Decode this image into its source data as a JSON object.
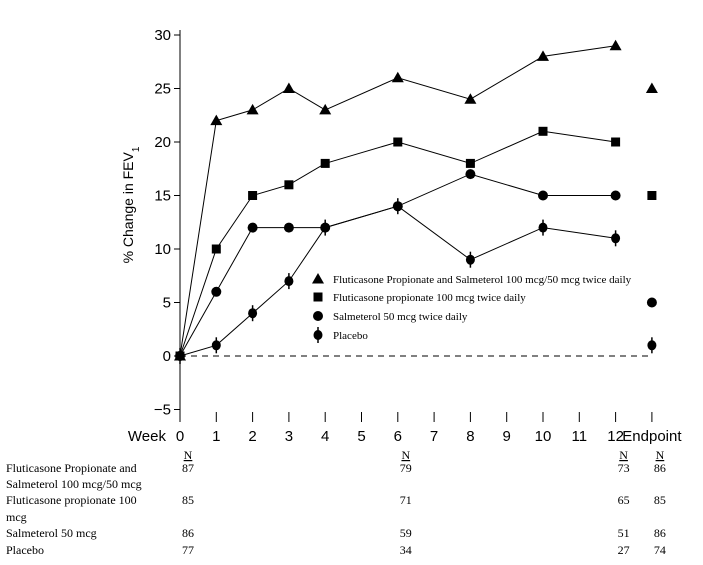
{
  "chart_data": {
    "type": "line",
    "ylabel": "% Change in FEV",
    "ylabel_subscript": "1",
    "ylim": [
      -5,
      30
    ],
    "yticks": [
      "30",
      "25",
      "20",
      "15",
      "10",
      "5",
      "0",
      "−5"
    ],
    "ytick_values": [
      30,
      25,
      20,
      15,
      10,
      5,
      0,
      -5
    ],
    "x_title": "Week",
    "xticks": [
      "0",
      "1",
      "2",
      "3",
      "4",
      "5",
      "6",
      "7",
      "8",
      "9",
      "10",
      "11",
      "12",
      "Endpoint"
    ],
    "xtick_values": [
      0,
      1,
      2,
      3,
      4,
      5,
      6,
      7,
      8,
      9,
      10,
      11,
      12,
      13
    ],
    "reference_line": {
      "y": 0,
      "style": "dashed"
    },
    "legend_position": "center-right",
    "series": [
      {
        "name": "Fluticasone Propionate and Salmeterol 100 mcg/50 mcg twice daily",
        "marker": "triangle",
        "x": [
          0,
          1,
          2,
          3,
          4,
          6,
          8,
          10,
          12
        ],
        "y": [
          0,
          22,
          23,
          25,
          23,
          26,
          24,
          28,
          29
        ],
        "endpoint": 25
      },
      {
        "name": "Fluticasone propionate 100 mcg twice daily",
        "marker": "square",
        "x": [
          0,
          1,
          2,
          3,
          4,
          6,
          8,
          10,
          12
        ],
        "y": [
          0,
          10,
          15,
          16,
          18,
          20,
          18,
          21,
          20
        ],
        "endpoint": 15
      },
      {
        "name": "Salmeterol 50 mcg twice daily",
        "marker": "circle",
        "x": [
          0,
          1,
          2,
          3,
          4,
          6,
          8,
          10,
          12
        ],
        "y": [
          0,
          6,
          12,
          12,
          12,
          14,
          17,
          15,
          15
        ],
        "endpoint": 5
      },
      {
        "name": "Placebo",
        "marker": "diamond",
        "x": [
          0,
          1,
          2,
          3,
          4,
          6,
          8,
          10,
          12
        ],
        "y": [
          0,
          1,
          4,
          7,
          12,
          14,
          9,
          12,
          11
        ],
        "endpoint": 1
      }
    ]
  },
  "n_table": {
    "header": "N",
    "columns_x": [
      0,
      6,
      12,
      13
    ],
    "rows": [
      {
        "label_lines": [
          "Fluticasone Propionate and",
          "Salmeterol 100 mcg/50 mcg"
        ],
        "values": [
          "87",
          "79",
          "73",
          "86"
        ]
      },
      {
        "label_lines": [
          "Fluticasone propionate 100",
          "mcg"
        ],
        "values": [
          "85",
          "71",
          "65",
          "85"
        ]
      },
      {
        "label_lines": [
          "Salmeterol 50 mcg"
        ],
        "values": [
          "86",
          "59",
          "51",
          "86"
        ]
      },
      {
        "label_lines": [
          "Placebo"
        ],
        "values": [
          "77",
          "34",
          "27",
          "74"
        ]
      }
    ]
  }
}
